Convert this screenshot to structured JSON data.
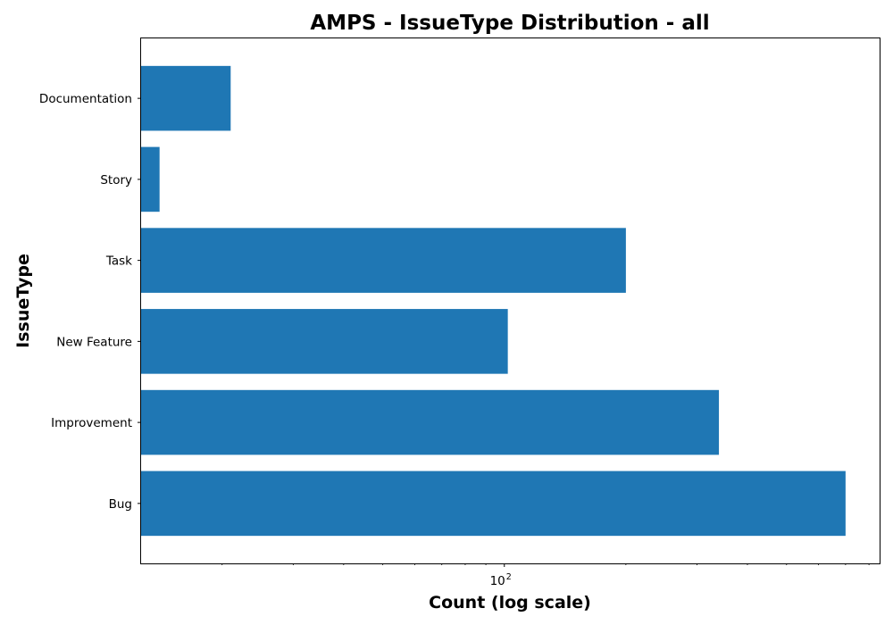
{
  "chart_data": {
    "type": "bar",
    "orientation": "horizontal",
    "title": "AMPS - IssueType Distribution - all",
    "xlabel": "Count (log scale)",
    "ylabel": "IssueType",
    "x_scale": "log",
    "x_tick_label": {
      "base": "10",
      "exponent": "2",
      "value": 100
    },
    "xlim": [
      12.6,
      850
    ],
    "categories": [
      "Bug",
      "Improvement",
      "New Feature",
      "Task",
      "Story",
      "Documentation"
    ],
    "values": [
      700,
      340,
      102,
      200,
      14,
      21
    ],
    "bar_color": "#1f77b4",
    "grid": false,
    "legend": "none"
  }
}
